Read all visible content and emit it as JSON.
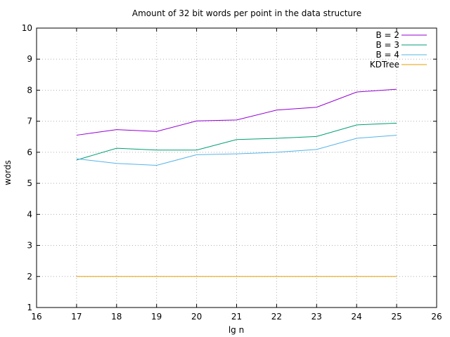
{
  "chart_data": {
    "type": "line",
    "title": "Amount of 32 bit words per point in the data structure",
    "xlabel": "lg n",
    "ylabel": "words",
    "xlim": [
      16,
      26
    ],
    "ylim": [
      1,
      10
    ],
    "xticks": [
      16,
      17,
      18,
      19,
      20,
      21,
      22,
      23,
      24,
      25,
      26
    ],
    "yticks": [
      1,
      2,
      3,
      4,
      5,
      6,
      7,
      8,
      9,
      10
    ],
    "grid": true,
    "legend_position": "top-right",
    "x": [
      17,
      18,
      19,
      20,
      21,
      22,
      23,
      24,
      25
    ],
    "series": [
      {
        "name": "B = 2",
        "color": "#9400d3",
        "values": [
          6.55,
          6.73,
          6.67,
          7.01,
          7.04,
          7.36,
          7.45,
          7.94,
          8.03
        ]
      },
      {
        "name": "B = 3",
        "color": "#009e73",
        "values": [
          5.75,
          6.13,
          6.07,
          6.07,
          6.41,
          6.45,
          6.51,
          6.88,
          6.94
        ]
      },
      {
        "name": "B = 4",
        "color": "#56b4e9",
        "values": [
          5.79,
          5.64,
          5.58,
          5.92,
          5.95,
          6.0,
          6.09,
          6.45,
          6.55
        ]
      },
      {
        "name": "KDTree",
        "color": "#e69f00",
        "values": [
          2,
          2,
          2,
          2,
          2,
          2,
          2,
          2,
          2
        ]
      }
    ]
  }
}
